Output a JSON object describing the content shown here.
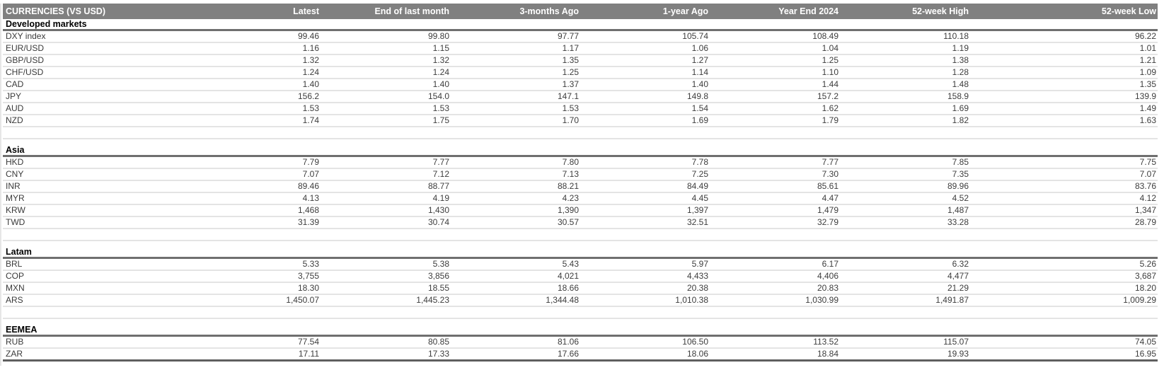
{
  "title": "CURRENCIES (VS USD)",
  "colors": {
    "header_bg": "#808080",
    "header_text": "#ffffff",
    "section_rule": "#6f6f6f",
    "row_separator": "#e4e4e4",
    "bottom_rule": "#5f5f5f",
    "data_text": "#3d3d3d"
  },
  "chart_data": {
    "type": "table",
    "title": "CURRENCIES (VS USD)",
    "columns": [
      "CURRENCIES (VS USD)",
      "Latest",
      "End of last month",
      "3-months Ago",
      "1-year Ago",
      "Year End 2024",
      "52-week High",
      "52-week Low"
    ],
    "sections": [
      {
        "label": "Developed markets",
        "rows": [
          {
            "label": "DXY index",
            "values": [
              "99.46",
              "99.80",
              "97.77",
              "105.74",
              "108.49",
              "110.18",
              "96.22"
            ]
          },
          {
            "label": "EUR/USD",
            "values": [
              "1.16",
              "1.15",
              "1.17",
              "1.06",
              "1.04",
              "1.19",
              "1.01"
            ]
          },
          {
            "label": "GBP/USD",
            "values": [
              "1.32",
              "1.32",
              "1.35",
              "1.27",
              "1.25",
              "1.38",
              "1.21"
            ]
          },
          {
            "label": "CHF/USD",
            "values": [
              "1.24",
              "1.24",
              "1.25",
              "1.14",
              "1.10",
              "1.28",
              "1.09"
            ]
          },
          {
            "label": "CAD",
            "values": [
              "1.40",
              "1.40",
              "1.37",
              "1.40",
              "1.44",
              "1.48",
              "1.35"
            ]
          },
          {
            "label": "JPY",
            "values": [
              "156.2",
              "154.0",
              "147.1",
              "149.8",
              "157.2",
              "158.9",
              "139.9"
            ]
          },
          {
            "label": "AUD",
            "values": [
              "1.53",
              "1.53",
              "1.53",
              "1.54",
              "1.62",
              "1.69",
              "1.49"
            ]
          },
          {
            "label": "NZD",
            "values": [
              "1.74",
              "1.75",
              "1.70",
              "1.69",
              "1.79",
              "1.82",
              "1.63"
            ]
          }
        ]
      },
      {
        "label": "Asia",
        "rows": [
          {
            "label": "HKD",
            "values": [
              "7.79",
              "7.77",
              "7.80",
              "7.78",
              "7.77",
              "7.85",
              "7.75"
            ]
          },
          {
            "label": "CNY",
            "values": [
              "7.07",
              "7.12",
              "7.13",
              "7.25",
              "7.30",
              "7.35",
              "7.07"
            ]
          },
          {
            "label": "INR",
            "values": [
              "89.46",
              "88.77",
              "88.21",
              "84.49",
              "85.61",
              "89.96",
              "83.76"
            ]
          },
          {
            "label": "MYR",
            "values": [
              "4.13",
              "4.19",
              "4.23",
              "4.45",
              "4.47",
              "4.52",
              "4.12"
            ]
          },
          {
            "label": "KRW",
            "values": [
              "1,468",
              "1,430",
              "1,390",
              "1,397",
              "1,479",
              "1,487",
              "1,347"
            ]
          },
          {
            "label": "TWD",
            "values": [
              "31.39",
              "30.74",
              "30.57",
              "32.51",
              "32.79",
              "33.28",
              "28.79"
            ]
          }
        ]
      },
      {
        "label": "Latam",
        "rows": [
          {
            "label": "BRL",
            "values": [
              "5.33",
              "5.38",
              "5.43",
              "5.97",
              "6.17",
              "6.32",
              "5.26"
            ]
          },
          {
            "label": "COP",
            "values": [
              "3,755",
              "3,856",
              "4,021",
              "4,433",
              "4,406",
              "4,477",
              "3,687"
            ]
          },
          {
            "label": "MXN",
            "values": [
              "18.30",
              "18.55",
              "18.66",
              "20.38",
              "20.83",
              "21.29",
              "18.20"
            ]
          },
          {
            "label": "ARS",
            "values": [
              "1,450.07",
              "1,445.23",
              "1,344.48",
              "1,010.38",
              "1,030.99",
              "1,491.87",
              "1,009.29"
            ]
          }
        ]
      },
      {
        "label": "EEMEA",
        "rows": [
          {
            "label": "RUB",
            "values": [
              "77.54",
              "80.85",
              "81.06",
              "106.50",
              "113.52",
              "115.07",
              "74.05"
            ]
          },
          {
            "label": "ZAR",
            "values": [
              "17.11",
              "17.33",
              "17.66",
              "18.06",
              "18.84",
              "19.93",
              "16.95"
            ]
          }
        ]
      }
    ]
  }
}
